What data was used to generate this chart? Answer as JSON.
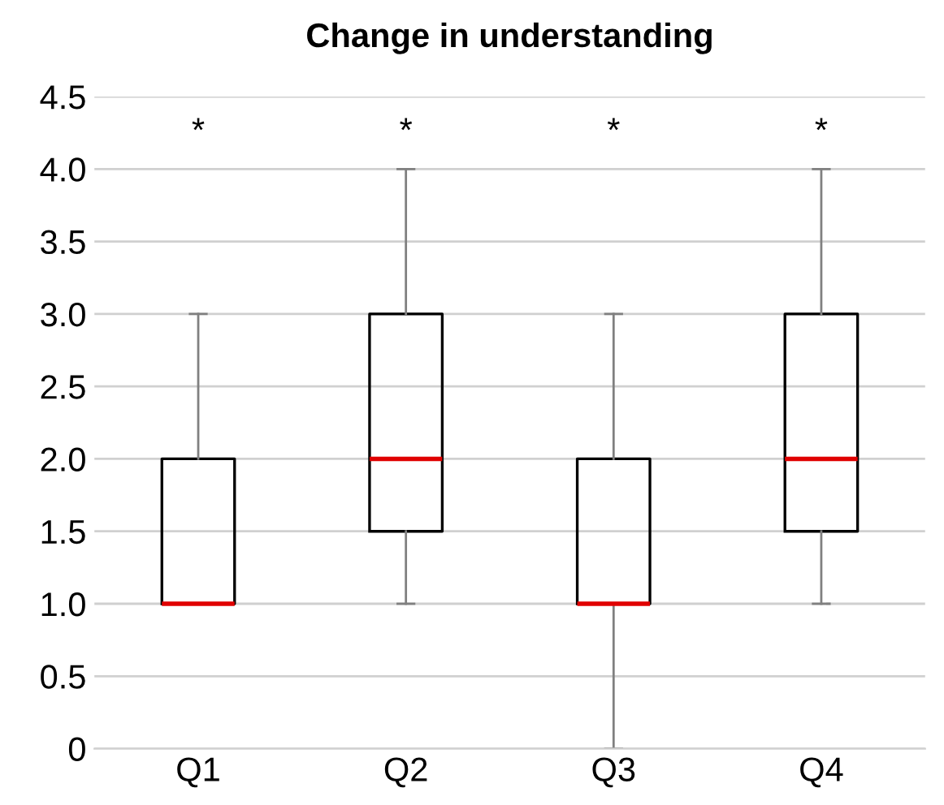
{
  "chart_data": {
    "type": "box",
    "title": "Change in understanding",
    "categories": [
      "Q1",
      "Q2",
      "Q3",
      "Q4"
    ],
    "boxes": [
      {
        "low": 1,
        "q1": 1,
        "median": 1,
        "q3": 2,
        "high": 3
      },
      {
        "low": 1,
        "q1": 1.5,
        "median": 2,
        "q3": 3,
        "high": 4
      },
      {
        "low": 0,
        "q1": 1,
        "median": 1,
        "q3": 2,
        "high": 3
      },
      {
        "low": 1,
        "q1": 1.5,
        "median": 2,
        "q3": 3,
        "high": 4
      }
    ],
    "ylim": [
      0,
      4.5
    ],
    "yticks": [
      0,
      {
        "value": 0.5,
        "label": "0.5"
      },
      {
        "value": 1,
        "label": "1.0"
      },
      {
        "value": 1.5,
        "label": "1.5"
      },
      {
        "value": 2,
        "label": "2.0"
      },
      {
        "value": 2.5,
        "label": "2.5"
      },
      {
        "value": 3,
        "label": "3.0"
      },
      {
        "value": 3.5,
        "label": "3.5"
      },
      {
        "value": 4,
        "label": "4.0"
      },
      {
        "value": 4.5,
        "label": "4.5"
      }
    ],
    "grid": "y",
    "annotations": [
      "*",
      "*",
      "*",
      "*"
    ]
  }
}
